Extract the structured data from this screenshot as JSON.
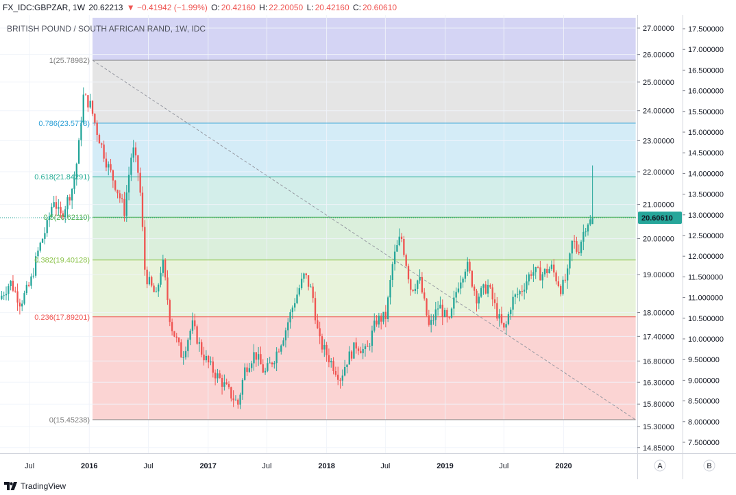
{
  "header": {
    "symbol": "FX_IDC:GBPZAR, 1W",
    "last": "20.62213",
    "change": "▼ −0.41942 (−1.99%)",
    "open_label": "O:",
    "open": "20.42160",
    "high_label": "H:",
    "high": "22.20050",
    "low_label": "L:",
    "low": "20.42160",
    "close_label": "C:",
    "close": "20.60610"
  },
  "chart_title": "BRITISH POUND / SOUTH AFRICAN RAND, 1W, IDC",
  "price_badge": "20.60610",
  "scale_buttons": {
    "a": "A",
    "b": "B"
  },
  "branding": "TradingView",
  "colors": {
    "up": "#26a69a",
    "down": "#ef5350",
    "fib_1": "#7e7e7e",
    "fib_0786": "#2a9fd6",
    "fib_0618": "#22ab94",
    "fib_05": "#4caf50",
    "fib_0382": "#8bc34a",
    "fib_0236": "#ef5350",
    "fib_0": "#7e7e7e",
    "badge": "#26a69a"
  },
  "chart_data": {
    "type": "candlestick",
    "title": "BRITISH POUND / SOUTH AFRICAN RAND, 1W, IDC",
    "x_ticks": [
      "Jul",
      "2016",
      "Jul",
      "2017",
      "Jul",
      "2018",
      "Jul",
      "2019",
      "Jul",
      "2020"
    ],
    "x_tick_dates": [
      "2015-07-01",
      "2016-01-01",
      "2016-07-01",
      "2017-01-01",
      "2017-07-01",
      "2018-01-01",
      "2018-07-01",
      "2019-01-01",
      "2019-07-01",
      "2020-01-01"
    ],
    "x_range": [
      "2015-04-01",
      "2020-08-15"
    ],
    "y_axis_a": {
      "label": "A",
      "ticks": [
        "27.00000",
        "26.00000",
        "25.00000",
        "24.00000",
        "23.00000",
        "22.00000",
        "21.00000",
        "20.00000",
        "19.00000",
        "18.00000",
        "17.40000",
        "16.80000",
        "16.30000",
        "15.80000",
        "15.30000",
        "14.85000"
      ],
      "tick_values": [
        27.0,
        26.0,
        25.0,
        24.0,
        23.0,
        22.0,
        21.0,
        20.0,
        19.0,
        18.0,
        17.4,
        16.8,
        16.3,
        15.8,
        15.3,
        14.85
      ],
      "scale": "log"
    },
    "y_axis_b": {
      "label": "B",
      "ticks": [
        "17.500000",
        "17.000000",
        "16.500000",
        "16.000000",
        "15.500000",
        "15.000000",
        "14.500000",
        "14.000000",
        "13.500000",
        "13.000000",
        "12.500000",
        "12.000000",
        "11.500000",
        "11.000000",
        "10.500000",
        "10.000000",
        "9.500000",
        "9.000000",
        "8.500000",
        "8.000000",
        "7.500000"
      ],
      "tick_values": [
        17.5,
        17.0,
        16.5,
        16.0,
        15.5,
        15.0,
        14.5,
        14.0,
        13.5,
        13.0,
        12.5,
        12.0,
        11.5,
        11.0,
        10.5,
        10.0,
        9.5,
        9.0,
        8.5,
        8.0,
        7.5
      ]
    },
    "last_price": 20.6061,
    "fibonacci": {
      "start_date": "2016-01-11",
      "end_date": "2020-08-10",
      "levels": [
        {
          "ratio": 1,
          "price": 25.78982,
          "label": "1(25.78982)"
        },
        {
          "ratio": 0.786,
          "price": 23.5778,
          "label": "0.786(23.5778)"
        },
        {
          "ratio": 0.618,
          "price": 21.84291,
          "label": "0.618(21.84291)"
        },
        {
          "ratio": 0.5,
          "price": 20.6211,
          "label": "0.5(20.62110)"
        },
        {
          "ratio": 0.382,
          "price": 19.40128,
          "label": "0.382(19.40128)"
        },
        {
          "ratio": 0.236,
          "price": 17.89201,
          "label": "0.236(17.89201)"
        },
        {
          "ratio": 0,
          "price": 15.45238,
          "label": "0(15.45238)"
        }
      ],
      "extension_above": 27.4
    },
    "trend_line": {
      "from": [
        "2016-01-11",
        25.79
      ],
      "to": [
        "2020-08-10",
        15.45
      ]
    },
    "path": [
      [
        "2015-04-06",
        18.35
      ],
      [
        "2015-05-10",
        18.8
      ],
      [
        "2015-06-10",
        18.25
      ],
      [
        "2015-07-10",
        18.75
      ],
      [
        "2015-08-05",
        19.7
      ],
      [
        "2015-09-01",
        20.4
      ],
      [
        "2015-09-20",
        21.2
      ],
      [
        "2015-10-10",
        20.6
      ],
      [
        "2015-11-01",
        21.1
      ],
      [
        "2015-11-20",
        21.6
      ],
      [
        "2015-12-05",
        22.6
      ],
      [
        "2015-12-20",
        24.5
      ],
      [
        "2016-01-11",
        24.2
      ],
      [
        "2016-02-01",
        23.3
      ],
      [
        "2016-03-01",
        22.3
      ],
      [
        "2016-04-01",
        21.5
      ],
      [
        "2016-04-25",
        20.8
      ],
      [
        "2016-05-20",
        22.8
      ],
      [
        "2016-06-10",
        21.8
      ],
      [
        "2016-06-28",
        19.0
      ],
      [
        "2016-08-01",
        18.4
      ],
      [
        "2016-08-20",
        19.4
      ],
      [
        "2016-09-15",
        17.7
      ],
      [
        "2016-10-20",
        16.9
      ],
      [
        "2016-11-20",
        17.7
      ],
      [
        "2016-12-20",
        17.0
      ],
      [
        "2017-01-20",
        16.6
      ],
      [
        "2017-02-20",
        16.3
      ],
      [
        "2017-03-20",
        16.0
      ],
      [
        "2017-04-10",
        15.8
      ],
      [
        "2017-05-01",
        16.6
      ],
      [
        "2017-06-01",
        17.0
      ],
      [
        "2017-07-01",
        16.5
      ],
      [
        "2017-08-01",
        16.9
      ],
      [
        "2017-09-01",
        17.5
      ],
      [
        "2017-10-01",
        18.3
      ],
      [
        "2017-11-01",
        19.0
      ],
      [
        "2017-11-25",
        18.5
      ],
      [
        "2017-12-15",
        17.3
      ],
      [
        "2018-01-20",
        16.8
      ],
      [
        "2018-02-20",
        16.4
      ],
      [
        "2018-03-10",
        16.8
      ],
      [
        "2018-04-10",
        17.2
      ],
      [
        "2018-05-10",
        17.0
      ],
      [
        "2018-06-10",
        17.8
      ],
      [
        "2018-07-10",
        17.9
      ],
      [
        "2018-08-01",
        19.4
      ],
      [
        "2018-08-25",
        20.1
      ],
      [
        "2018-09-25",
        18.6
      ],
      [
        "2018-10-20",
        18.9
      ],
      [
        "2018-11-20",
        17.6
      ],
      [
        "2018-12-20",
        18.2
      ],
      [
        "2019-01-20",
        17.7
      ],
      [
        "2019-02-15",
        18.7
      ],
      [
        "2019-03-15",
        19.3
      ],
      [
        "2019-04-15",
        18.4
      ],
      [
        "2019-05-20",
        18.7
      ],
      [
        "2019-06-20",
        17.9
      ],
      [
        "2019-07-10",
        17.5
      ],
      [
        "2019-08-01",
        18.3
      ],
      [
        "2019-09-01",
        18.6
      ],
      [
        "2019-10-01",
        19.1
      ],
      [
        "2019-11-01",
        19.0
      ],
      [
        "2019-12-01",
        19.2
      ],
      [
        "2020-01-01",
        18.6
      ],
      [
        "2020-01-20",
        19.0
      ],
      [
        "2020-02-05",
        20.0
      ],
      [
        "2020-02-20",
        19.6
      ],
      [
        "2020-03-06",
        20.1
      ],
      [
        "2020-03-20",
        20.5
      ]
    ],
    "last_candle": {
      "date": "2020-03-30",
      "open": 20.4216,
      "high": 22.2005,
      "low": 20.4216,
      "close": 20.6061
    }
  }
}
